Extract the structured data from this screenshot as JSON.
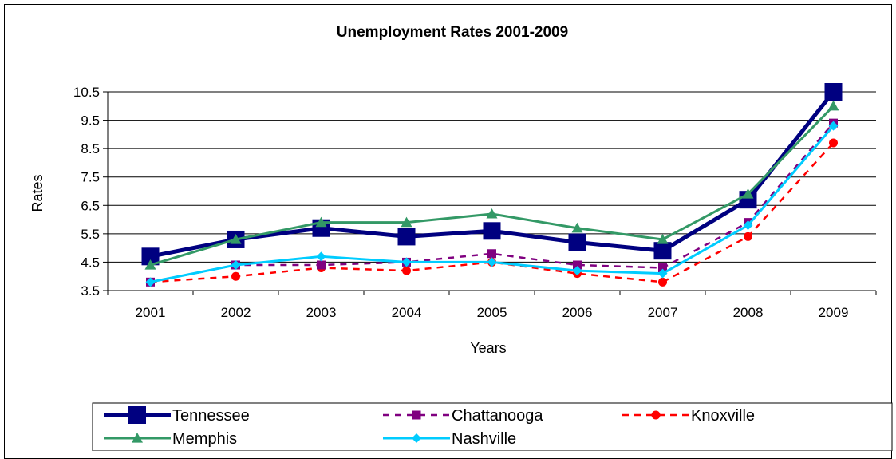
{
  "chart_data": {
    "type": "line",
    "title": "Unemployment Rates 2001-2009",
    "xlabel": "Years",
    "ylabel": "Rates",
    "categories": [
      "2001",
      "2002",
      "2003",
      "2004",
      "2005",
      "2006",
      "2007",
      "2008",
      "2009"
    ],
    "yticks": [
      "3.5",
      "4.5",
      "5.5",
      "6.5",
      "7.5",
      "8.5",
      "9.5",
      "10.5"
    ],
    "ylim": [
      3.5,
      10.5
    ],
    "grid": "horizontal",
    "legend_position": "bottom",
    "series": [
      {
        "name": "Tennessee",
        "values": [
          4.7,
          5.3,
          5.7,
          5.4,
          5.6,
          5.2,
          4.9,
          6.7,
          10.5
        ],
        "color": "#000080",
        "marker": "square",
        "dash": "solid"
      },
      {
        "name": "Chattanooga",
        "values": [
          3.8,
          4.4,
          4.4,
          4.5,
          4.8,
          4.4,
          4.3,
          5.9,
          9.4
        ],
        "color": "#800080",
        "marker": "square",
        "dash": "dashed"
      },
      {
        "name": "Knoxville",
        "values": [
          3.8,
          4.0,
          4.3,
          4.2,
          4.5,
          4.1,
          3.8,
          5.4,
          8.7
        ],
        "color": "#ff0000",
        "marker": "circle",
        "dash": "dashed"
      },
      {
        "name": "Memphis",
        "values": [
          4.4,
          5.3,
          5.9,
          5.9,
          6.2,
          5.7,
          5.3,
          6.9,
          10.0
        ],
        "color": "#339966",
        "marker": "triangle",
        "dash": "solid"
      },
      {
        "name": "Nashville",
        "values": [
          3.8,
          4.4,
          4.7,
          4.5,
          4.5,
          4.2,
          4.1,
          5.8,
          9.3
        ],
        "color": "#00ccff",
        "marker": "diamond",
        "dash": "solid"
      }
    ]
  }
}
